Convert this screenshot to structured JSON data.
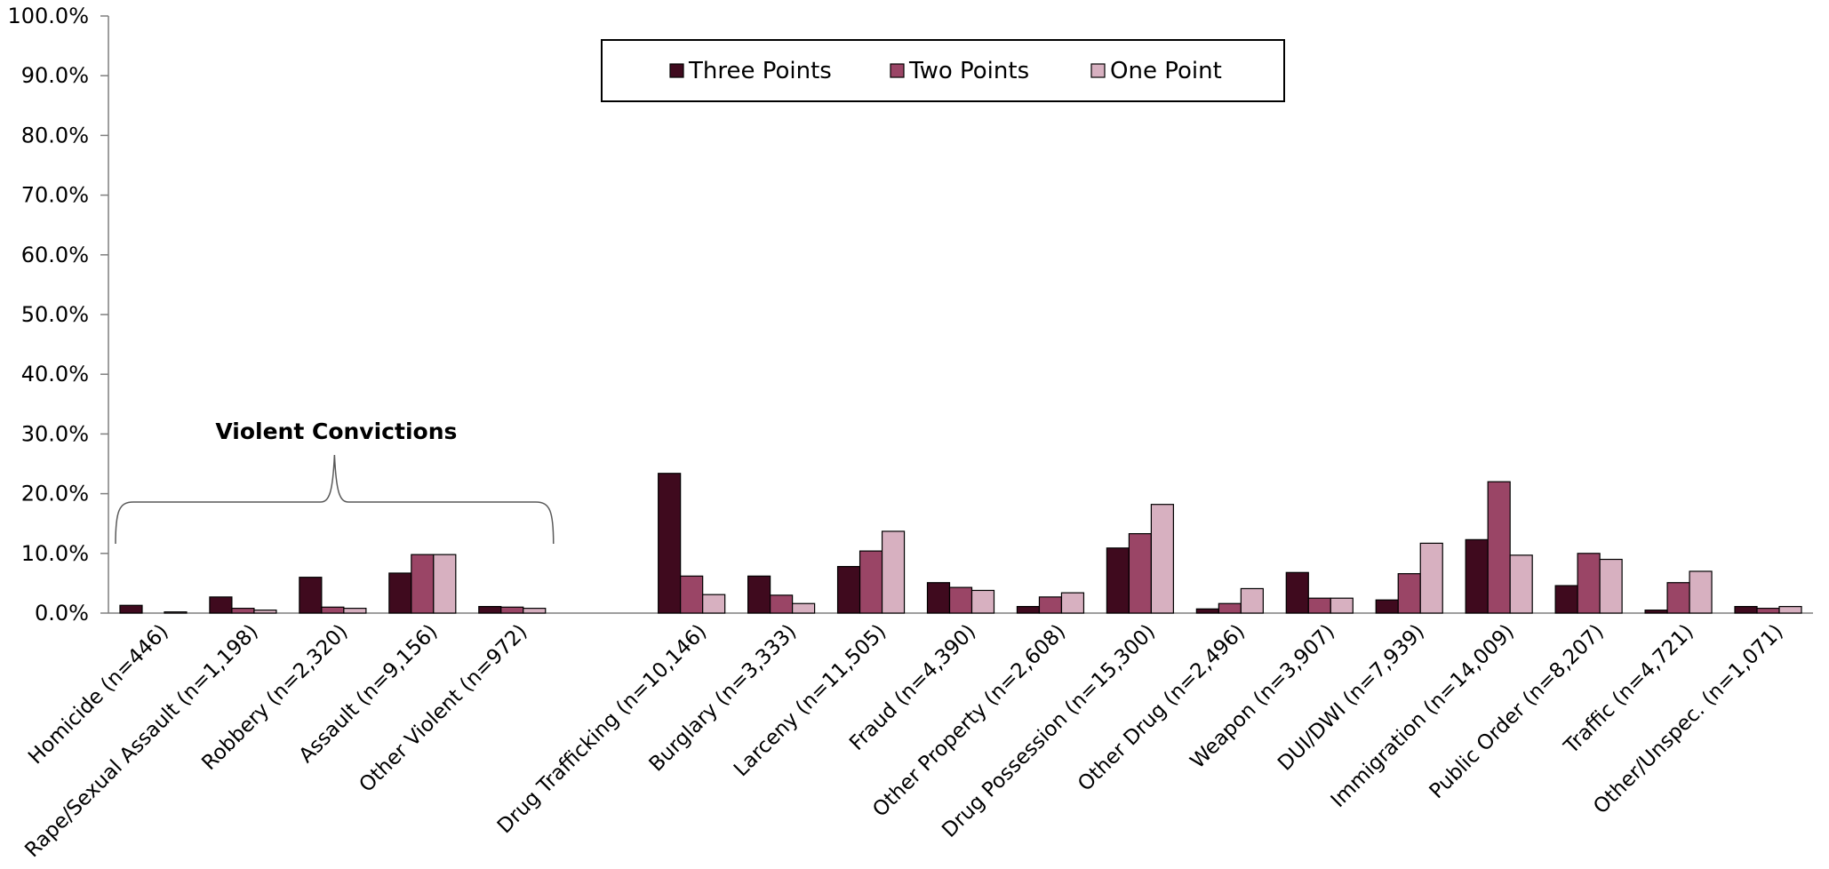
{
  "chart_data": {
    "type": "bar",
    "categories": [
      "Homicide (n=446)",
      "Rape/Sexual Assault (n=1,198)",
      "Robbery (n=2,320)",
      "Assault (n=9,156)",
      "Other Violent (n=972)",
      "",
      "Drug Trafficking (n=10,146)",
      "Burglary (n=3,333)",
      "Larceny (n=11,505)",
      "Fraud (n=4,390)",
      "Other Property (n=2,608)",
      "Drug Possession (n=15,300)",
      "Other Drug  (n=2,496)",
      "Weapon (n=3,907)",
      "DUI/DWI (n=7,939)",
      "Immigration (n=14,009)",
      "Public Order (n=8,207)",
      "Traffic (n=4,721)",
      "Other/Unspec. (n=1,071)"
    ],
    "series": [
      {
        "name": "Three Points",
        "color": "#3f0a1e",
        "values": [
          1.3,
          2.7,
          6.0,
          6.7,
          1.1,
          null,
          23.4,
          6.2,
          7.8,
          5.1,
          1.1,
          10.9,
          0.7,
          6.8,
          2.2,
          12.3,
          4.6,
          0.5,
          1.1
        ]
      },
      {
        "name": "Two Points",
        "color": "#9a4566",
        "values": [
          0.0,
          0.8,
          1.0,
          9.8,
          1.0,
          null,
          6.2,
          3.0,
          10.4,
          4.3,
          2.7,
          13.3,
          1.6,
          2.5,
          6.6,
          22.0,
          10.0,
          5.1,
          0.8
        ]
      },
      {
        "name": "One Point",
        "color": "#d7b0c0",
        "values": [
          0.2,
          0.5,
          0.8,
          9.8,
          0.8,
          null,
          3.1,
          1.6,
          13.7,
          3.8,
          3.4,
          18.2,
          4.1,
          2.5,
          11.7,
          9.7,
          9.0,
          7.0,
          1.1
        ]
      }
    ],
    "ylim": [
      0,
      100
    ],
    "yticks": [
      "0.0%",
      "10.0%",
      "20.0%",
      "30.0%",
      "40.0%",
      "50.0%",
      "60.0%",
      "70.0%",
      "80.0%",
      "90.0%",
      "100.0%"
    ],
    "legend_position": "top-center",
    "grid": false,
    "annotation": {
      "text": "Violent Convictions",
      "spans_categories": [
        0,
        4
      ]
    }
  }
}
